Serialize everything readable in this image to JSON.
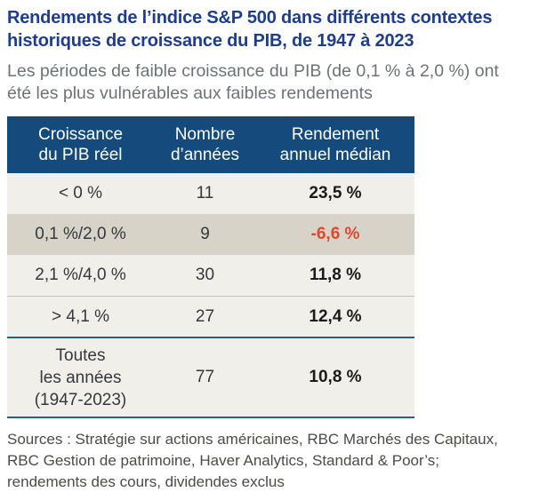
{
  "title": {
    "line1": "Rendements de l’indice S&P 500 dans différents contextes",
    "line2": "historiques de croissance du PIB, de 1947 à 2023"
  },
  "subtitle": {
    "line1": "Les périodes de faible croissance du PIB (de 0,1 % à 2,0 %) ont",
    "line2": "été les plus vulnérables aux faibles rendements"
  },
  "table": {
    "headers": [
      {
        "line1": "Croissance",
        "line2": "du PIB réel"
      },
      {
        "line1": "Nombre",
        "line2": "d’années"
      },
      {
        "line1": "Rendement",
        "line2": "annuel médian"
      }
    ],
    "rows": [
      {
        "growth": "< 0 %",
        "years": "11",
        "median_return": "23,5 %"
      },
      {
        "growth": "0,1 %/2,0 %",
        "years": "9",
        "median_return": "-6,6 %"
      },
      {
        "growth": "2,1 %/4,0 %",
        "years": "30",
        "median_return": "11,8 %"
      },
      {
        "growth": "> 4,1 %",
        "years": "27",
        "median_return": "12,4 %"
      }
    ],
    "total": {
      "label_line1": "Toutes",
      "label_line2": "les années",
      "label_line3": "(1947-2023)",
      "years": "77",
      "median_return": "10,8 %"
    }
  },
  "sources": {
    "line1": "Sources : Stratégie sur actions américaines, RBC Marchés des Capitaux,",
    "line2": "RBC Gestion de patrimoine, Haver Analytics, Standard & Poor’s;",
    "line3": "rendements des cours, dividendes exclus"
  },
  "colors": {
    "title_blue": "#1e3d8f",
    "header_bg": "#154a7d",
    "header_text": "#ffffff",
    "row_bg": "#f1efe9",
    "highlight_row_bg": "#d8d3c9",
    "negative_red": "#e2462f",
    "accent_line_blue": "#2a5d93",
    "subtitle_gray": "#6e7278",
    "sources_gray": "#4d4b48"
  },
  "chart_data": {
    "type": "table",
    "title": "Rendements de l’indice S&P 500 dans différents contextes historiques de croissance du PIB, de 1947 à 2023",
    "subtitle": "Les périodes de faible croissance du PIB (de 0,1 % à 2,0 %) ont été les plus vulnérables aux faibles rendements",
    "columns": [
      "Croissance du PIB réel",
      "Nombre d’années",
      "Rendement annuel médian"
    ],
    "rows": [
      [
        "< 0 %",
        11,
        "23,5 %"
      ],
      [
        "0,1 %/2,0 %",
        9,
        "-6,6 %"
      ],
      [
        "2,1 %/4,0 %",
        30,
        "11,8 %"
      ],
      [
        "> 4,1 %",
        27,
        "12,4 %"
      ],
      [
        "Toutes les années (1947-2023)",
        77,
        "10,8 %"
      ]
    ],
    "highlighted_row": "0,1 %/2,0 %",
    "negative_value": "-6,6 %",
    "notes": "Sources : Stratégie sur actions américaines, RBC Marchés des Capitaux, RBC Gestion de patrimoine, Haver Analytics, Standard & Poor’s; rendements des cours, dividendes exclus"
  }
}
